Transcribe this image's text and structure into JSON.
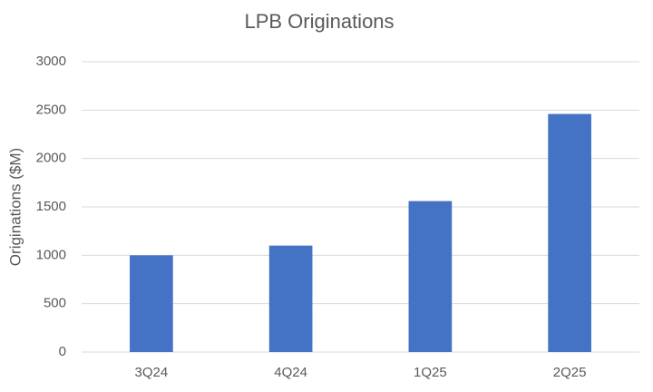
{
  "chart_data": {
    "type": "bar",
    "title": "LPB Originations",
    "y_label": "Originations ($M)",
    "categories": [
      "3Q24",
      "4Q24",
      "1Q25",
      "2Q25"
    ],
    "values": [
      1000,
      1100,
      1560,
      2460
    ],
    "color": "#4472c4",
    "ylim": [
      0,
      3000
    ],
    "yticks": [
      0,
      500,
      1000,
      1500,
      2000,
      2500,
      3000
    ],
    "grid": true
  }
}
